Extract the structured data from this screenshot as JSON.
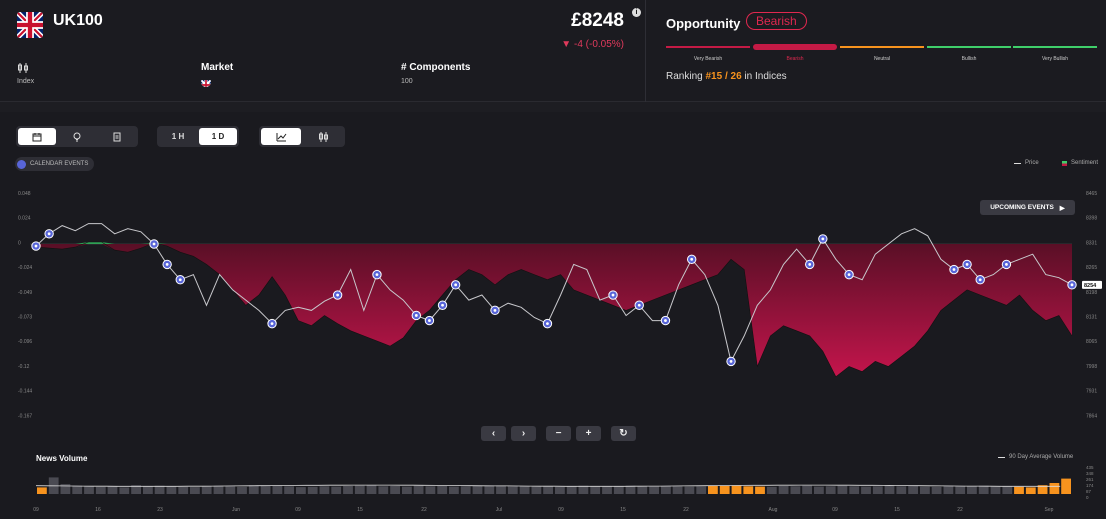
{
  "header": {
    "ticker": "UK100",
    "price": "£8248",
    "change": "-4 (-0.05%)",
    "info_icon": "i",
    "type_value": "Index",
    "market_label": "Market",
    "components_label": "# Components",
    "components_value": "100"
  },
  "opportunity": {
    "title": "Opportunity",
    "status": "Bearish",
    "levels": [
      "Very Bearish",
      "Bearish",
      "Neutral",
      "Bullish",
      "Very Bullish"
    ],
    "level_colors": [
      "#c41a45",
      "#c41a45",
      "#f7931e",
      "#3fcf6a",
      "#3fcf6a"
    ],
    "active_level": "Bearish",
    "ranking_prefix": "Ranking",
    "ranking_value": "#15 / 26",
    "ranking_suffix": "in Indices"
  },
  "toolbar": {
    "range_buttons": [
      "1 H",
      "1 D"
    ],
    "active_range": "1 D",
    "view_icons": [
      "calendar-icon",
      "lightbulb-icon",
      "document-icon"
    ],
    "chart_icons": [
      "area-chart-icon",
      "candlestick-icon"
    ],
    "calendar_events_label": "CALENDAR EVENTS"
  },
  "legend": {
    "price_label": "Price",
    "sentiment_label": "Sentiment"
  },
  "upcoming_events_label": "UPCOMING EVENTS",
  "news_volume": {
    "title": "News Volume",
    "legend": "90 Day Average Volume",
    "y_ticks": [
      "435",
      "348",
      "261",
      "174",
      "87",
      "0"
    ]
  },
  "chart_data": {
    "type": "line",
    "left_axis_ticks": [
      "0.048",
      "0.024",
      "0",
      "-0.024",
      "-0.049",
      "-0.073",
      "-0.096",
      "-0.12",
      "-0.144",
      "-0.167"
    ],
    "right_axis_ticks": [
      "8465",
      "8398",
      "8331",
      "8265",
      "8198",
      "8131",
      "8065",
      "7998",
      "7931",
      "7864"
    ],
    "current_price_tag": "8254",
    "x_labels": [
      "09",
      "16",
      "23",
      "Jun",
      "09",
      "15",
      "22",
      "Jul",
      "09",
      "15",
      "22",
      "Aug",
      "09",
      "15",
      "22",
      "Sep"
    ],
    "series": [
      {
        "name": "Price",
        "color": "#bdbdc2"
      },
      {
        "name": "Sentiment",
        "color": "#b01845"
      }
    ],
    "sentiment": [
      -0.003,
      -0.004,
      -0.005,
      -0.003,
      0.002,
      0.002,
      -0.006,
      -0.008,
      -0.004,
      0.001,
      -0.002,
      -0.008,
      -0.012,
      -0.02,
      -0.03,
      -0.045,
      -0.06,
      -0.05,
      -0.032,
      -0.05,
      -0.075,
      -0.08,
      -0.07,
      -0.078,
      -0.085,
      -0.09,
      -0.095,
      -0.1,
      -0.092,
      -0.075,
      -0.065,
      -0.05,
      -0.035,
      -0.025,
      -0.03,
      -0.04,
      -0.03,
      -0.025,
      -0.03,
      -0.035,
      -0.03,
      -0.045,
      -0.05,
      -0.055,
      -0.06,
      -0.065,
      -0.06,
      -0.055,
      -0.05,
      -0.045,
      -0.04,
      -0.035,
      -0.03,
      -0.015,
      -0.025,
      -0.12,
      -0.09,
      -0.08,
      -0.085,
      -0.09,
      -0.105,
      -0.13,
      -0.12,
      -0.125,
      -0.115,
      -0.12,
      -0.11,
      -0.1,
      -0.085,
      -0.065,
      -0.055,
      -0.045,
      -0.05,
      -0.055,
      -0.06,
      -0.05,
      -0.065,
      -0.075,
      -0.07,
      -0.09
    ],
    "price": [
      -0.002,
      0.01,
      0.018,
      0.013,
      0.02,
      0.02,
      0.01,
      0.015,
      0.012,
      0.0,
      -0.02,
      -0.035,
      -0.03,
      -0.06,
      -0.03,
      -0.045,
      -0.055,
      -0.065,
      -0.078,
      -0.065,
      -0.062,
      -0.065,
      -0.056,
      -0.05,
      -0.025,
      -0.065,
      -0.03,
      -0.045,
      -0.055,
      -0.07,
      -0.075,
      -0.06,
      -0.04,
      -0.055,
      -0.05,
      -0.065,
      -0.058,
      -0.062,
      -0.072,
      -0.078,
      -0.05,
      -0.02,
      -0.025,
      -0.055,
      -0.05,
      -0.07,
      -0.06,
      -0.075,
      -0.075,
      -0.04,
      -0.015,
      -0.03,
      -0.06,
      -0.115,
      -0.09,
      -0.06,
      -0.045,
      -0.02,
      -0.005,
      -0.02,
      0.005,
      -0.015,
      -0.03,
      -0.035,
      -0.01,
      0.0,
      0.01,
      0.015,
      0.008,
      -0.015,
      -0.025,
      -0.02,
      -0.035,
      -0.03,
      -0.02,
      -0.015,
      -0.01,
      -0.03,
      -0.033,
      -0.04
    ],
    "volume": [
      120,
      300,
      180,
      150,
      140,
      130,
      145,
      120,
      160,
      140,
      150,
      135,
      130,
      125,
      140,
      150,
      140,
      130,
      160,
      145,
      150,
      140,
      125,
      130,
      140,
      135,
      145,
      150,
      160,
      140,
      145,
      135,
      150,
      140,
      145,
      135,
      140,
      150,
      145,
      155,
      140,
      145,
      135,
      140,
      130,
      145,
      150,
      140,
      135,
      140,
      150,
      140,
      135,
      145,
      140,
      135,
      140,
      150,
      145,
      150,
      140,
      135,
      130,
      145,
      140,
      150,
      135,
      140,
      150,
      140,
      135,
      140,
      150,
      140,
      145,
      135,
      130,
      150,
      140,
      145,
      150,
      135,
      140,
      130,
      120,
      160,
      200,
      280
    ],
    "volume_highlight": [
      1,
      0,
      0,
      0,
      0,
      0,
      0,
      0,
      0,
      0,
      0,
      0,
      0,
      0,
      0,
      0,
      0,
      0,
      0,
      0,
      0,
      0,
      0,
      0,
      0,
      0,
      0,
      0,
      0,
      0,
      0,
      0,
      0,
      0,
      0,
      0,
      0,
      0,
      0,
      0,
      0,
      0,
      0,
      0,
      0,
      0,
      0,
      0,
      0,
      0,
      0,
      0,
      0,
      0,
      0,
      0,
      0,
      1,
      1,
      1,
      1,
      1,
      0,
      0,
      0,
      0,
      0,
      0,
      0,
      0,
      0,
      0,
      0,
      0,
      0,
      0,
      0,
      0,
      0,
      0,
      0,
      0,
      0,
      1,
      1,
      1,
      1,
      1,
      1
    ]
  }
}
